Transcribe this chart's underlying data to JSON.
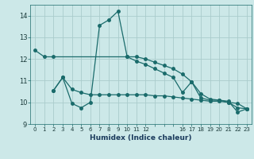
{
  "xlabel": "Humidex (Indice chaleur)",
  "bg_color": "#cce8e8",
  "grid_color": "#aacccc",
  "line_color": "#1a6b6b",
  "xlim": [
    -0.5,
    23.5
  ],
  "ylim": [
    9,
    14.5
  ],
  "yticks": [
    9,
    10,
    11,
    12,
    13,
    14
  ],
  "xtick_positions": [
    0,
    1,
    2,
    3,
    4,
    5,
    6,
    7,
    8,
    9,
    10,
    11,
    12,
    13,
    14,
    15,
    16,
    17,
    18,
    19,
    20,
    21,
    22,
    23
  ],
  "xtick_labels": [
    "0",
    "1",
    "2",
    "3",
    "4",
    "5",
    "6",
    "7",
    "8",
    "9",
    "10",
    "11",
    "12",
    "",
    "",
    "",
    "16",
    "17",
    "18",
    "19",
    "20",
    "21",
    "22",
    "23"
  ],
  "curve1_x": [
    0,
    1,
    2,
    10,
    11,
    12,
    13,
    14,
    15,
    16,
    17,
    18,
    19,
    20,
    21,
    22,
    23
  ],
  "curve1_y": [
    12.4,
    12.1,
    12.1,
    12.1,
    12.1,
    12.0,
    11.85,
    11.7,
    11.55,
    11.3,
    10.95,
    10.4,
    10.15,
    10.1,
    10.0,
    9.75,
    9.7
  ],
  "curve2_x": [
    2,
    3,
    4,
    5,
    6,
    7,
    8,
    9,
    10,
    11,
    12,
    13,
    14,
    15,
    16,
    17,
    18,
    19,
    20,
    21,
    22,
    23
  ],
  "curve2_y": [
    10.55,
    11.15,
    9.95,
    9.75,
    10.0,
    13.55,
    13.8,
    14.2,
    12.1,
    11.9,
    11.75,
    11.55,
    11.35,
    11.15,
    10.45,
    10.95,
    10.2,
    10.1,
    10.1,
    10.05,
    9.55,
    9.7
  ],
  "curve3_x": [
    2,
    3,
    4,
    5,
    6,
    7,
    8,
    9,
    10,
    11,
    12,
    13,
    14,
    15,
    16,
    17,
    18,
    19,
    20,
    21,
    22,
    23
  ],
  "curve3_y": [
    10.55,
    11.15,
    10.6,
    10.45,
    10.35,
    10.35,
    10.35,
    10.35,
    10.35,
    10.35,
    10.35,
    10.3,
    10.3,
    10.25,
    10.2,
    10.15,
    10.1,
    10.05,
    10.05,
    10.0,
    9.95,
    9.7
  ]
}
